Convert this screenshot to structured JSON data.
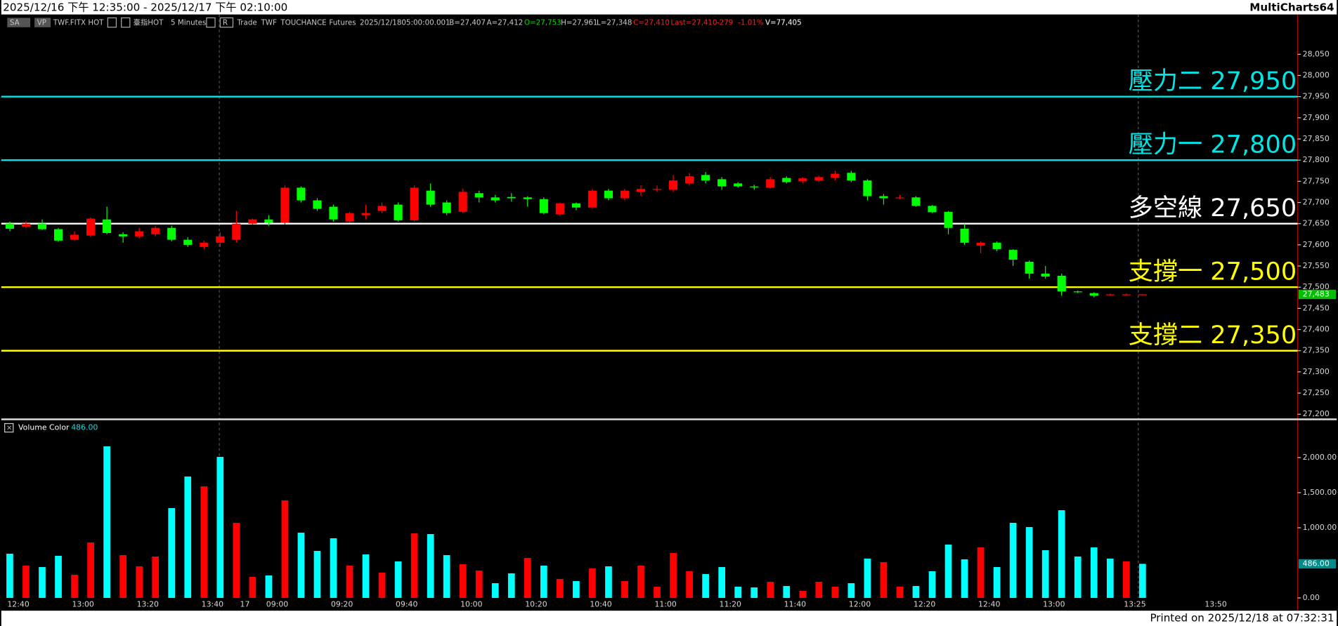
{
  "window": {
    "range": "2025/12/16 下午 12:35:00 - 2025/12/17 下午 02:10:00",
    "app": "MultiCharts64",
    "info": [
      "SA",
      "VP",
      "TWF.FITX HOT",
      "臺指HOT",
      "5 Minutes",
      "R",
      "Trade",
      "TWF",
      "TOUCHANCE",
      "Futures",
      "2025/12/18",
      "05:00:00.001",
      "B=27,407",
      "A=27,412",
      "O=27,753",
      "H=27,961",
      "L=27,348",
      "C=27,410",
      "Last=27,410",
      "-279",
      "-1.01%",
      "V=77,405"
    ],
    "footer": "Printed on 2025/12/18 at 07:32:31"
  },
  "chart_data": [
    {
      "type": "candlestick",
      "categories": [
        "12:40",
        null,
        null,
        null,
        "13:00",
        null,
        null,
        null,
        "13:20",
        null,
        null,
        null,
        "13:40",
        null,
        "17",
        null,
        "09:00",
        null,
        null,
        null,
        "09:20",
        null,
        null,
        null,
        "09:40",
        null,
        null,
        null,
        "10:00",
        null,
        null,
        null,
        "10:20",
        null,
        null,
        null,
        "10:40",
        null,
        null,
        null,
        "11:00",
        null,
        null,
        null,
        "11:20",
        null,
        null,
        null,
        "11:40",
        null,
        null,
        null,
        "12:00",
        null,
        null,
        null,
        "12:20",
        null,
        null,
        null,
        "12:40",
        null,
        null,
        null,
        "13:00",
        null,
        null,
        null,
        null,
        "13:25",
        null,
        null,
        null,
        null,
        "13:50"
      ],
      "open": [
        27650,
        27643,
        27650,
        27637,
        27612,
        27622,
        27660,
        27625,
        27620,
        27625,
        27640,
        27612,
        27595,
        27605,
        27612,
        27650,
        27660,
        27652,
        27735,
        27705,
        27690,
        27655,
        27670,
        27680,
        27695,
        27658,
        27728,
        27700,
        27678,
        27722,
        27712,
        27713,
        27712,
        27708,
        27672,
        27698,
        27688,
        27728,
        27710,
        27725,
        27730,
        27730,
        27745,
        27765,
        27755,
        27745,
        27738,
        27735,
        27758,
        27750,
        27752,
        27758,
        27770,
        27752,
        27715,
        27710,
        27712,
        27692,
        27678,
        27638,
        27598,
        27605,
        27588,
        27560,
        27532,
        27527,
        27490,
        27486,
        27481,
        27482,
        27482,
        null,
        null,
        null,
        null
      ],
      "high": [
        27655,
        27656,
        27660,
        27640,
        27632,
        27665,
        27690,
        27630,
        27640,
        27645,
        27645,
        27618,
        27610,
        27630,
        27680,
        27662,
        27670,
        27740,
        27738,
        27710,
        27695,
        27678,
        27695,
        27700,
        27700,
        27740,
        27745,
        27705,
        27732,
        27728,
        27718,
        27722,
        27715,
        27712,
        27700,
        27700,
        27732,
        27732,
        27732,
        27740,
        27740,
        27765,
        27770,
        27772,
        27760,
        27748,
        27742,
        27760,
        27762,
        27760,
        27763,
        27775,
        27775,
        27755,
        27720,
        27718,
        27715,
        27694,
        27680,
        27650,
        27608,
        27608,
        27590,
        27563,
        27550,
        27532,
        27492,
        27488,
        27485,
        27485,
        27484,
        null,
        null,
        null,
        null
      ],
      "low": [
        27632,
        27640,
        27635,
        27607,
        27610,
        27618,
        27625,
        27605,
        27615,
        27620,
        27608,
        27595,
        27590,
        27595,
        27605,
        27648,
        27645,
        27648,
        27700,
        27680,
        27655,
        27652,
        27660,
        27675,
        27655,
        27655,
        27690,
        27670,
        27675,
        27700,
        27700,
        27702,
        27690,
        27672,
        27668,
        27682,
        27685,
        27705,
        27705,
        27715,
        27725,
        27725,
        27740,
        27745,
        27730,
        27735,
        27730,
        27733,
        27745,
        27745,
        27748,
        27752,
        27748,
        27705,
        27695,
        27708,
        27690,
        27675,
        27625,
        27600,
        27580,
        27585,
        27550,
        27520,
        27520,
        27480,
        27486,
        27476,
        27480,
        27481,
        27482,
        null,
        null,
        null,
        null
      ],
      "close": [
        27638,
        27650,
        27637,
        27610,
        27624,
        27662,
        27628,
        27620,
        27632,
        27640,
        27612,
        27600,
        27605,
        27620,
        27650,
        27660,
        27652,
        27735,
        27705,
        27685,
        27660,
        27675,
        27675,
        27692,
        27658,
        27735,
        27695,
        27675,
        27725,
        27712,
        27705,
        27710,
        27708,
        27675,
        27698,
        27688,
        27728,
        27710,
        27728,
        27732,
        27732,
        27752,
        27762,
        27752,
        27738,
        27738,
        27736,
        27755,
        27748,
        27757,
        27760,
        27768,
        27752,
        27715,
        27710,
        27712,
        27692,
        27677,
        27640,
        27605,
        27605,
        27590,
        27565,
        27532,
        27525,
        27490,
        27488,
        27480,
        27483,
        27483,
        27483,
        null,
        null,
        null,
        null
      ],
      "up_color": "#ff0000",
      "down_color": "#00ff00",
      "ylim": [
        27190,
        28142
      ],
      "yticks": [
        {
          "value": 27200,
          "label": "27,200"
        },
        {
          "value": 27250,
          "label": "27,250"
        },
        {
          "value": 27300,
          "label": "27,300"
        },
        {
          "value": 27350,
          "label": "27,350"
        },
        {
          "value": 27400,
          "label": "27,400"
        },
        {
          "value": 27450,
          "label": "27,450"
        },
        {
          "value": 27500,
          "label": "27,500"
        },
        {
          "value": 27550,
          "label": "27,550"
        },
        {
          "value": 27600,
          "label": "27,600"
        },
        {
          "value": 27650,
          "label": "27,650"
        },
        {
          "value": 27700,
          "label": "27,700"
        },
        {
          "value": 27750,
          "label": "27,750"
        },
        {
          "value": 27800,
          "label": "27,800"
        },
        {
          "value": 27850,
          "label": "27,850"
        },
        {
          "value": 27900,
          "label": "27,900"
        },
        {
          "value": 27950,
          "label": "27,950"
        },
        {
          "value": 28000,
          "label": "28,000"
        },
        {
          "value": 28050,
          "label": "28,050"
        }
      ],
      "levels": [
        {
          "value": 27950,
          "label": "壓力二 27,950",
          "color": "#00e5e5"
        },
        {
          "value": 27800,
          "label": "壓力一 27,800",
          "color": "#00e5e5"
        },
        {
          "value": 27650,
          "label": "多空線 27,650",
          "color": "#ffffff"
        },
        {
          "value": 27500,
          "label": "支撐一 27,500",
          "color": "#ffff00"
        },
        {
          "value": 27350,
          "label": "支撐二 27,350",
          "color": "#ffff00"
        }
      ],
      "last_price": {
        "value": 27483,
        "label": "27,483",
        "color": "#00c000"
      }
    },
    {
      "type": "bar",
      "title": "Volume Color",
      "values": [
        630,
        460,
        440,
        600,
        330,
        790,
        2160,
        610,
        450,
        590,
        1280,
        1730,
        1590,
        2010,
        1070,
        300,
        320,
        1390,
        930,
        670,
        850,
        460,
        620,
        360,
        520,
        920,
        910,
        610,
        480,
        390,
        210,
        350,
        570,
        460,
        270,
        240,
        420,
        450,
        240,
        460,
        160,
        640,
        380,
        340,
        440,
        160,
        150,
        230,
        170,
        100,
        230,
        160,
        210,
        560,
        510,
        160,
        170,
        380,
        760,
        550,
        720,
        440,
        1070,
        1010,
        680,
        1250,
        590,
        720,
        560,
        520,
        486,
        null,
        null,
        null,
        null
      ],
      "colors": [
        "#00ffff",
        "#ff0000",
        "#00ffff",
        "#00ffff",
        "#ff0000",
        "#ff0000",
        "#00ffff",
        "#ff0000",
        "#ff0000",
        "#ff0000",
        "#00ffff",
        "#00ffff",
        "#ff0000",
        "#00ffff",
        "#ff0000",
        "#ff0000",
        "#00ffff",
        "#ff0000",
        "#00ffff",
        "#00ffff",
        "#00ffff",
        "#ff0000",
        "#00ffff",
        "#ff0000",
        "#00ffff",
        "#ff0000",
        "#00ffff",
        "#00ffff",
        "#ff0000",
        "#ff0000",
        "#00ffff",
        "#00ffff",
        "#ff0000",
        "#00ffff",
        "#ff0000",
        "#00ffff",
        "#ff0000",
        "#00ffff",
        "#ff0000",
        "#ff0000",
        "#ff0000",
        "#ff0000",
        "#ff0000",
        "#00ffff",
        "#00ffff",
        "#00ffff",
        "#00ffff",
        "#ff0000",
        "#00ffff",
        "#ff0000",
        "#ff0000",
        "#ff0000",
        "#00ffff",
        "#00ffff",
        "#ff0000",
        "#ff0000",
        "#00ffff",
        "#00ffff",
        "#00ffff",
        "#00ffff",
        "#ff0000",
        "#00ffff",
        "#00ffff",
        "#00ffff",
        "#00ffff",
        "#00ffff",
        "#00ffff",
        "#00ffff",
        "#00ffff",
        "#ff0000",
        "#00ffff",
        null,
        null,
        null,
        null
      ],
      "ylim": [
        0,
        2521
      ],
      "yticks": [
        {
          "value": 0,
          "label": "0.00"
        },
        {
          "value": 1000,
          "label": "1,000.00"
        },
        {
          "value": 1500,
          "label": "1,500.00"
        },
        {
          "value": 2000,
          "label": "2,000.00"
        }
      ],
      "last": {
        "value": 486,
        "label": "486.00",
        "color": "#008b8b"
      }
    }
  ]
}
